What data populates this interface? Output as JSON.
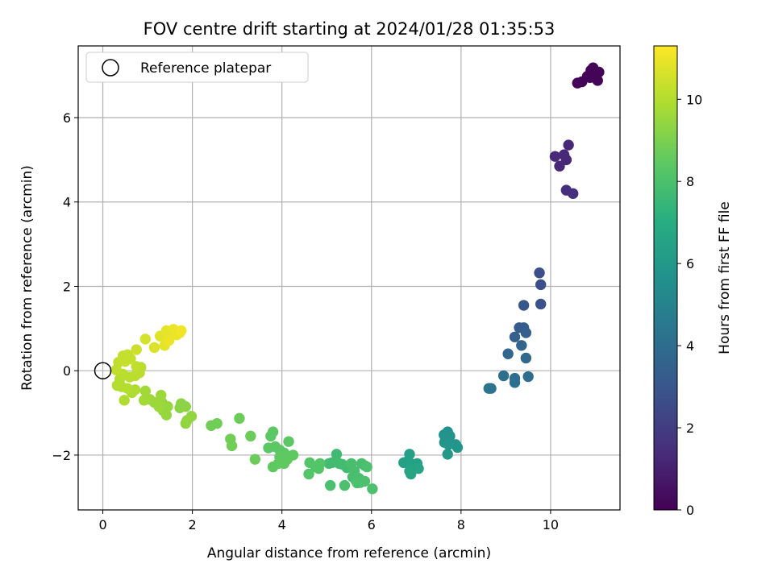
{
  "chart_data": {
    "type": "scatter",
    "title": "FOV centre drift starting at 2024/01/28 01:35:53",
    "xlabel": "Angular distance from reference (arcmin)",
    "ylabel": "Rotation from reference (arcmin)",
    "xlim": [
      -0.55,
      11.55
    ],
    "ylim": [
      -3.3,
      7.7
    ],
    "xticks": [
      0,
      2,
      4,
      6,
      8,
      10
    ],
    "yticks": [
      -2,
      0,
      2,
      4,
      6
    ],
    "xtick_labels": [
      "0",
      "2",
      "4",
      "6",
      "8",
      "10"
    ],
    "ytick_labels": [
      "−2",
      "0",
      "2",
      "4",
      "6"
    ],
    "grid": true,
    "legend": {
      "placement": "top-left",
      "entries": [
        {
          "label": "Reference platepar",
          "marker": "open-circle"
        }
      ]
    },
    "reference_point": {
      "x": 0,
      "y": 0
    },
    "colorbar": {
      "label": "Hours from first FF file",
      "min": 0,
      "max": 11.3,
      "ticks": [
        0,
        2,
        4,
        6,
        8,
        10
      ],
      "tick_labels": [
        "0",
        "2",
        "4",
        "6",
        "8",
        "10"
      ],
      "colormap": "viridis"
    },
    "points": [
      {
        "x": 10.6,
        "y": 6.82,
        "c": 0.1
      },
      {
        "x": 10.7,
        "y": 6.85,
        "c": 0.1
      },
      {
        "x": 10.82,
        "y": 6.98,
        "c": 0.1
      },
      {
        "x": 10.9,
        "y": 7.12,
        "c": 0.1
      },
      {
        "x": 10.95,
        "y": 7.18,
        "c": 0.1
      },
      {
        "x": 11.0,
        "y": 7.05,
        "c": 0.1
      },
      {
        "x": 11.05,
        "y": 6.88,
        "c": 0.1
      },
      {
        "x": 10.88,
        "y": 6.95,
        "c": 0.1
      },
      {
        "x": 11.08,
        "y": 7.08,
        "c": 0.1
      },
      {
        "x": 10.1,
        "y": 5.08,
        "c": 1.3
      },
      {
        "x": 10.2,
        "y": 4.85,
        "c": 1.3
      },
      {
        "x": 10.3,
        "y": 5.12,
        "c": 1.3
      },
      {
        "x": 10.4,
        "y": 5.35,
        "c": 1.3
      },
      {
        "x": 10.35,
        "y": 5.0,
        "c": 1.3
      },
      {
        "x": 10.35,
        "y": 4.28,
        "c": 1.5
      },
      {
        "x": 10.5,
        "y": 4.2,
        "c": 1.5
      },
      {
        "x": 9.75,
        "y": 2.32,
        "c": 2.7
      },
      {
        "x": 9.78,
        "y": 2.04,
        "c": 2.7
      },
      {
        "x": 9.78,
        "y": 1.58,
        "c": 2.8
      },
      {
        "x": 9.4,
        "y": 1.55,
        "c": 3.0
      },
      {
        "x": 9.3,
        "y": 1.02,
        "c": 3.3
      },
      {
        "x": 9.4,
        "y": 1.02,
        "c": 3.3
      },
      {
        "x": 9.2,
        "y": 0.8,
        "c": 3.4
      },
      {
        "x": 9.45,
        "y": 0.9,
        "c": 3.4
      },
      {
        "x": 9.35,
        "y": 0.6,
        "c": 3.6
      },
      {
        "x": 9.05,
        "y": 0.4,
        "c": 3.7
      },
      {
        "x": 9.45,
        "y": 0.3,
        "c": 3.8
      },
      {
        "x": 8.95,
        "y": -0.12,
        "c": 4.0
      },
      {
        "x": 9.2,
        "y": -0.18,
        "c": 4.0
      },
      {
        "x": 9.5,
        "y": -0.14,
        "c": 4.0
      },
      {
        "x": 9.2,
        "y": -0.28,
        "c": 4.1
      },
      {
        "x": 8.62,
        "y": -0.42,
        "c": 4.3
      },
      {
        "x": 8.67,
        "y": -0.42,
        "c": 4.3
      },
      {
        "x": 7.62,
        "y": -1.52,
        "c": 5.7
      },
      {
        "x": 7.7,
        "y": -1.45,
        "c": 5.7
      },
      {
        "x": 7.65,
        "y": -1.6,
        "c": 5.8
      },
      {
        "x": 7.75,
        "y": -1.55,
        "c": 5.8
      },
      {
        "x": 7.63,
        "y": -1.7,
        "c": 5.8
      },
      {
        "x": 7.72,
        "y": -1.75,
        "c": 5.9
      },
      {
        "x": 7.88,
        "y": -1.75,
        "c": 5.9
      },
      {
        "x": 7.92,
        "y": -1.82,
        "c": 5.9
      },
      {
        "x": 7.7,
        "y": -1.98,
        "c": 6.0
      },
      {
        "x": 6.85,
        "y": -1.98,
        "c": 6.4
      },
      {
        "x": 6.8,
        "y": -2.15,
        "c": 6.4
      },
      {
        "x": 6.72,
        "y": -2.18,
        "c": 6.4
      },
      {
        "x": 6.88,
        "y": -2.2,
        "c": 6.5
      },
      {
        "x": 6.95,
        "y": -2.28,
        "c": 6.5
      },
      {
        "x": 7.02,
        "y": -2.2,
        "c": 6.5
      },
      {
        "x": 7.05,
        "y": -2.32,
        "c": 6.6
      },
      {
        "x": 6.85,
        "y": -2.38,
        "c": 6.6
      },
      {
        "x": 6.88,
        "y": -2.45,
        "c": 6.6
      },
      {
        "x": 5.22,
        "y": -1.98,
        "c": 7.7
      },
      {
        "x": 5.12,
        "y": -2.18,
        "c": 7.8
      },
      {
        "x": 5.05,
        "y": -2.2,
        "c": 7.8
      },
      {
        "x": 5.28,
        "y": -2.2,
        "c": 7.8
      },
      {
        "x": 5.35,
        "y": -2.22,
        "c": 7.8
      },
      {
        "x": 5.45,
        "y": -2.3,
        "c": 7.8
      },
      {
        "x": 5.55,
        "y": -2.2,
        "c": 7.9
      },
      {
        "x": 5.62,
        "y": -2.38,
        "c": 7.9
      },
      {
        "x": 5.58,
        "y": -2.52,
        "c": 7.9
      },
      {
        "x": 5.65,
        "y": -2.6,
        "c": 7.9
      },
      {
        "x": 5.72,
        "y": -2.55,
        "c": 7.9
      },
      {
        "x": 5.78,
        "y": -2.2,
        "c": 7.9
      },
      {
        "x": 5.85,
        "y": -2.25,
        "c": 7.9
      },
      {
        "x": 5.9,
        "y": -2.28,
        "c": 8.0
      },
      {
        "x": 5.75,
        "y": -2.65,
        "c": 8.0
      },
      {
        "x": 5.85,
        "y": -2.62,
        "c": 8.0
      },
      {
        "x": 5.68,
        "y": -2.66,
        "c": 8.0
      },
      {
        "x": 5.4,
        "y": -2.72,
        "c": 8.0
      },
      {
        "x": 5.08,
        "y": -2.72,
        "c": 8.0
      },
      {
        "x": 6.02,
        "y": -2.8,
        "c": 8.0
      },
      {
        "x": 4.62,
        "y": -2.18,
        "c": 8.2
      },
      {
        "x": 4.75,
        "y": -2.28,
        "c": 8.2
      },
      {
        "x": 4.85,
        "y": -2.2,
        "c": 8.2
      },
      {
        "x": 4.82,
        "y": -2.32,
        "c": 8.2
      },
      {
        "x": 4.6,
        "y": -2.45,
        "c": 8.2
      },
      {
        "x": 3.8,
        "y": -1.45,
        "c": 8.4
      },
      {
        "x": 3.75,
        "y": -1.55,
        "c": 8.4
      },
      {
        "x": 3.7,
        "y": -1.83,
        "c": 8.4
      },
      {
        "x": 3.85,
        "y": -1.8,
        "c": 8.4
      },
      {
        "x": 3.95,
        "y": -1.88,
        "c": 8.4
      },
      {
        "x": 4.05,
        "y": -1.95,
        "c": 8.4
      },
      {
        "x": 4.15,
        "y": -1.68,
        "c": 8.4
      },
      {
        "x": 4.25,
        "y": -2.0,
        "c": 8.5
      },
      {
        "x": 4.12,
        "y": -2.1,
        "c": 8.5
      },
      {
        "x": 4.05,
        "y": -2.2,
        "c": 8.5
      },
      {
        "x": 3.95,
        "y": -2.05,
        "c": 8.5
      },
      {
        "x": 3.92,
        "y": -2.2,
        "c": 8.5
      },
      {
        "x": 3.8,
        "y": -2.28,
        "c": 8.5
      },
      {
        "x": 3.05,
        "y": -1.13,
        "c": 8.7
      },
      {
        "x": 3.3,
        "y": -1.55,
        "c": 8.7
      },
      {
        "x": 3.4,
        "y": -2.1,
        "c": 8.7
      },
      {
        "x": 2.85,
        "y": -1.62,
        "c": 8.8
      },
      {
        "x": 2.88,
        "y": -1.78,
        "c": 8.8
      },
      {
        "x": 2.55,
        "y": -1.25,
        "c": 8.8
      },
      {
        "x": 2.42,
        "y": -1.3,
        "c": 8.8
      },
      {
        "x": 1.75,
        "y": -0.78,
        "c": 9.3
      },
      {
        "x": 1.85,
        "y": -0.85,
        "c": 9.3
      },
      {
        "x": 1.72,
        "y": -0.88,
        "c": 9.3
      },
      {
        "x": 1.98,
        "y": -1.08,
        "c": 9.4
      },
      {
        "x": 1.88,
        "y": -1.18,
        "c": 9.4
      },
      {
        "x": 1.85,
        "y": -1.25,
        "c": 9.4
      },
      {
        "x": 1.45,
        "y": -0.85,
        "c": 9.5
      },
      {
        "x": 1.42,
        "y": -1.05,
        "c": 9.5
      },
      {
        "x": 1.35,
        "y": -0.95,
        "c": 9.5
      },
      {
        "x": 1.32,
        "y": -0.75,
        "c": 9.5
      },
      {
        "x": 1.25,
        "y": -0.85,
        "c": 9.6
      },
      {
        "x": 1.15,
        "y": -0.75,
        "c": 9.6
      },
      {
        "x": 1.05,
        "y": -0.68,
        "c": 9.6
      },
      {
        "x": 0.92,
        "y": -0.7,
        "c": 9.7
      },
      {
        "x": 0.95,
        "y": -0.48,
        "c": 9.7
      },
      {
        "x": 1.3,
        "y": -0.58,
        "c": 9.6
      },
      {
        "x": 0.72,
        "y": -0.45,
        "c": 9.9
      },
      {
        "x": 0.65,
        "y": -0.52,
        "c": 9.9
      },
      {
        "x": 0.48,
        "y": -0.7,
        "c": 9.9
      },
      {
        "x": 0.55,
        "y": -0.42,
        "c": 10.0
      },
      {
        "x": 0.42,
        "y": -0.38,
        "c": 10.0
      },
      {
        "x": 0.32,
        "y": -0.35,
        "c": 10.0
      },
      {
        "x": 0.38,
        "y": -0.2,
        "c": 10.0
      },
      {
        "x": 0.45,
        "y": -0.08,
        "c": 10.1
      },
      {
        "x": 0.6,
        "y": -0.15,
        "c": 10.1
      },
      {
        "x": 0.72,
        "y": -0.12,
        "c": 10.1
      },
      {
        "x": 0.82,
        "y": -0.05,
        "c": 10.1
      },
      {
        "x": 0.85,
        "y": 0.08,
        "c": 10.1
      },
      {
        "x": 0.75,
        "y": 0.1,
        "c": 10.2
      },
      {
        "x": 0.3,
        "y": 0.02,
        "c": 10.2
      },
      {
        "x": 0.35,
        "y": 0.2,
        "c": 10.2
      },
      {
        "x": 0.5,
        "y": 0.22,
        "c": 10.3
      },
      {
        "x": 0.55,
        "y": 0.38,
        "c": 10.3
      },
      {
        "x": 0.62,
        "y": 0.28,
        "c": 10.3
      },
      {
        "x": 0.45,
        "y": 0.35,
        "c": 10.3
      },
      {
        "x": 0.75,
        "y": 0.5,
        "c": 10.4
      },
      {
        "x": 0.95,
        "y": 0.75,
        "c": 10.6
      },
      {
        "x": 1.15,
        "y": 0.55,
        "c": 10.7
      },
      {
        "x": 1.28,
        "y": 0.82,
        "c": 10.8
      },
      {
        "x": 1.42,
        "y": 0.95,
        "c": 10.9
      },
      {
        "x": 1.52,
        "y": 0.85,
        "c": 10.9
      },
      {
        "x": 1.58,
        "y": 0.98,
        "c": 11.0
      },
      {
        "x": 1.65,
        "y": 0.85,
        "c": 11.0
      },
      {
        "x": 1.72,
        "y": 0.9,
        "c": 11.0
      },
      {
        "x": 1.75,
        "y": 0.95,
        "c": 11.1
      },
      {
        "x": 1.38,
        "y": 0.6,
        "c": 10.9
      },
      {
        "x": 1.48,
        "y": 0.72,
        "c": 11.0
      }
    ]
  }
}
